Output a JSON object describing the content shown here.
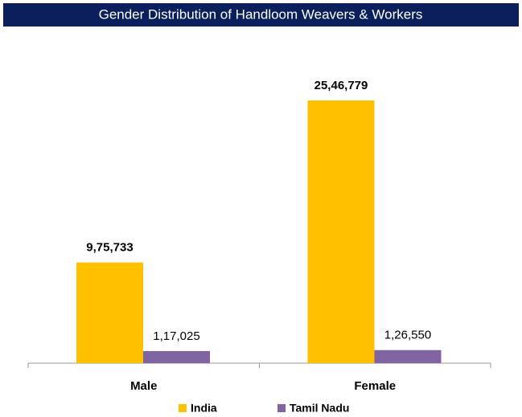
{
  "chart_data": {
    "type": "bar",
    "title": "Gender Distribution of Handloom Weavers & Workers",
    "categories": [
      "Male",
      "Female"
    ],
    "series": [
      {
        "name": "India",
        "color": "#ffc000",
        "values": [
          975733,
          2546779
        ],
        "value_labels": [
          "9,75,733",
          "25,46,779"
        ]
      },
      {
        "name": "Tamil Nadu",
        "color": "#8064a2",
        "values": [
          117025,
          126550
        ],
        "value_labels": [
          "1,17,025",
          "1,26,550"
        ]
      }
    ]
  }
}
